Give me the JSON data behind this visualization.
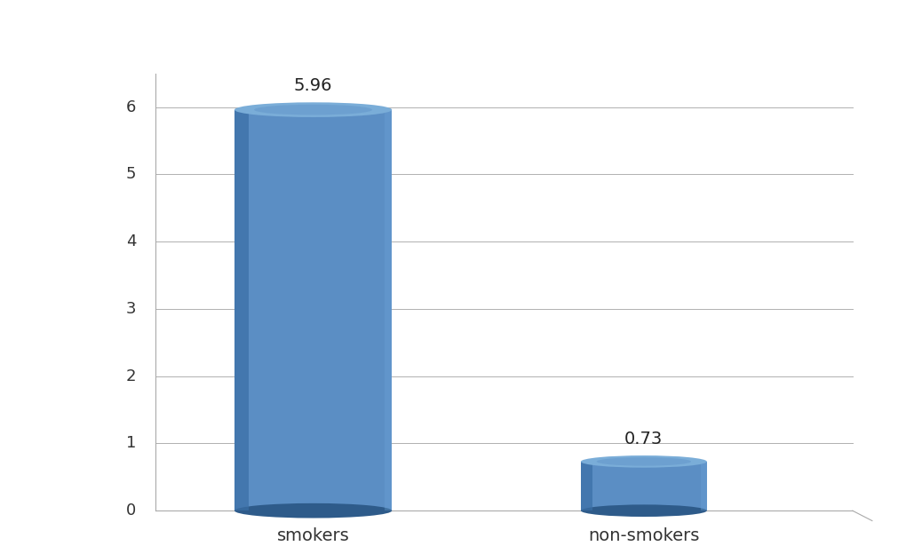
{
  "categories": [
    "smokers",
    "non-smokers"
  ],
  "values": [
    5.96,
    0.73
  ],
  "labels": [
    "5.96",
    "0.73"
  ],
  "bar_color_main": "#5b8ec4",
  "bar_color_top": "#7aadd8",
  "bar_color_left": "#3a6ea5",
  "bar_color_bottom": "#2e5b8a",
  "background_color": "#ffffff",
  "grid_color": "#b0b0b0",
  "text_color": "#333333",
  "ylim": [
    0,
    7.0
  ],
  "yticks": [
    0,
    1,
    2,
    3,
    4,
    5,
    6
  ],
  "label_fontsize": 14,
  "tick_fontsize": 13,
  "cat_fontsize": 14
}
